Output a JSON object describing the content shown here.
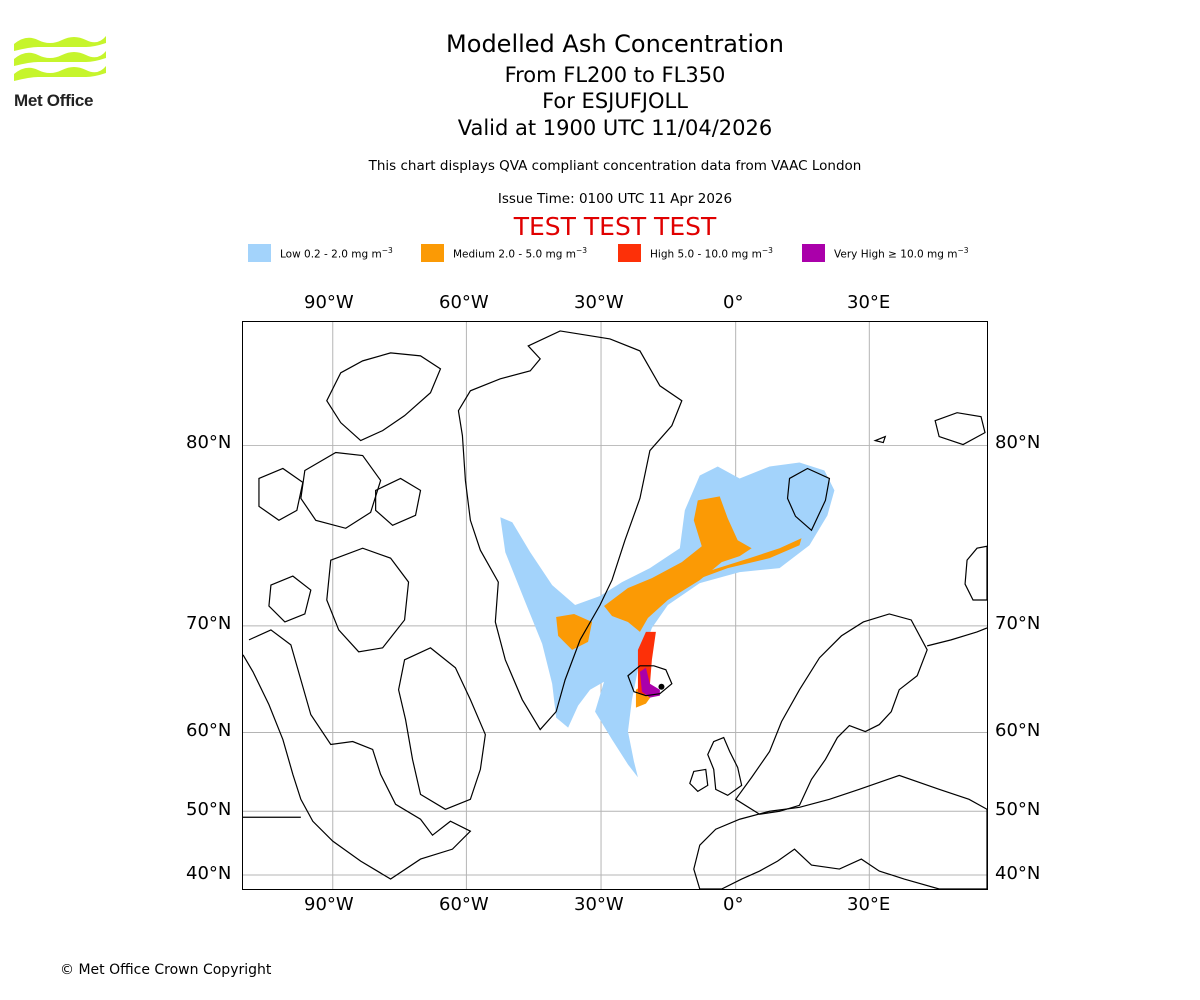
{
  "logo": {
    "text": "Met Office"
  },
  "header": {
    "title": "Modelled Ash Concentration",
    "levels": "From FL200 to FL350",
    "volcano": "For ESJUFJOLL",
    "valid": "Valid at 1900 UTC 11/04/2026",
    "description": "This chart displays QVA compliant concentration data from VAAC London",
    "issue_time": "Issue Time: 0100 UTC 11 Apr 2026",
    "test_banner": "TEST TEST TEST"
  },
  "legend": [
    {
      "name": "Low",
      "text": "Low 0.2 - 2.0 mg m",
      "exp": "−3",
      "color": "#a3d3fb"
    },
    {
      "name": "Medium",
      "text": "Medium 2.0 - 5.0 mg m",
      "exp": "−3",
      "color": "#fb9a05"
    },
    {
      "name": "High",
      "text": "High 5.0 - 10.0 mg m",
      "exp": "−3",
      "color": "#fd3008"
    },
    {
      "name": "Very High",
      "text": "Very High ≥ 10.0 mg m",
      "exp": "−3",
      "color": "#aa00aa"
    }
  ],
  "map": {
    "lon_labels": [
      "90°W",
      "60°W",
      "30°W",
      "0°",
      "30°E"
    ],
    "lat_labels": [
      "80°N",
      "70°N",
      "60°N",
      "50°N",
      "40°N"
    ],
    "gridlines": true,
    "coastlines": true,
    "volcano_lat": 64.3,
    "volcano_lon": -16.6
  },
  "footer": {
    "copyright": "© Met Office Crown Copyright"
  }
}
